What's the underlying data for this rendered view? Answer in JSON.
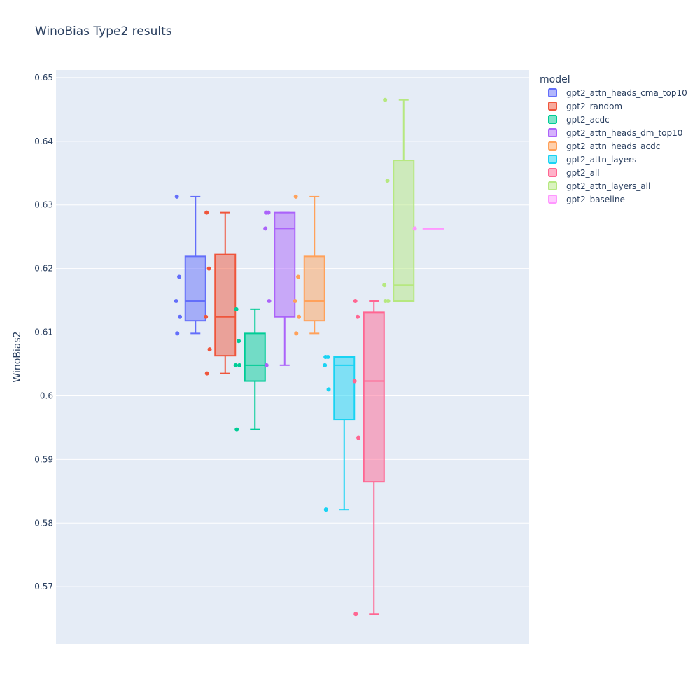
{
  "chart_data": {
    "type": "box",
    "title": "WinoBias Type2 results",
    "xlabel": "",
    "ylabel": "WinoBias2",
    "ylim": [
      0.561,
      0.6512
    ],
    "yticks": [
      0.57,
      0.58,
      0.59,
      0.6,
      0.61,
      0.62,
      0.63,
      0.64,
      0.65
    ],
    "ytick_labels": [
      "0.57",
      "0.58",
      "0.59",
      "0.6",
      "0.61",
      "0.62",
      "0.63",
      "0.64",
      "0.65"
    ],
    "grid": true,
    "legend_title": "model",
    "legend_position": "top-right",
    "series": [
      {
        "name": "gpt2_attn_heads_cma_top10",
        "color": "#636efa",
        "points": [
          0.6313,
          0.6187,
          0.6149,
          0.6124,
          0.6098
        ],
        "min": 0.6098,
        "q1": 0.6118,
        "median": 0.6149,
        "q3": 0.6219,
        "max": 0.6313
      },
      {
        "name": "gpt2_random",
        "color": "#ef553b",
        "points": [
          0.6288,
          0.62,
          0.6124,
          0.6073,
          0.6035
        ],
        "min": 0.6035,
        "q1": 0.6063,
        "median": 0.6124,
        "q3": 0.6222,
        "max": 0.6288
      },
      {
        "name": "gpt2_acdc",
        "color": "#00cc96",
        "points": [
          0.6136,
          0.6086,
          0.6048,
          0.6048,
          0.5947
        ],
        "min": 0.5947,
        "q1": 0.6023,
        "median": 0.6048,
        "q3": 0.6098,
        "max": 0.6136
      },
      {
        "name": "gpt2_attn_heads_dm_top10",
        "color": "#ab63fa",
        "points": [
          0.6288,
          0.6288,
          0.6263,
          0.6149,
          0.6048
        ],
        "min": 0.6048,
        "q1": 0.6124,
        "median": 0.6263,
        "q3": 0.6288,
        "max": 0.6288
      },
      {
        "name": "gpt2_attn_heads_acdc",
        "color": "#ffa15a",
        "points": [
          0.6313,
          0.6187,
          0.6149,
          0.6124,
          0.6098
        ],
        "min": 0.6098,
        "q1": 0.6118,
        "median": 0.6149,
        "q3": 0.6219,
        "max": 0.6313
      },
      {
        "name": "gpt2_attn_layers",
        "color": "#19d3f3",
        "points": [
          0.6061,
          0.6061,
          0.6048,
          0.601,
          0.5821
        ],
        "min": 0.5821,
        "q1": 0.5963,
        "median": 0.6048,
        "q3": 0.6061,
        "max": 0.6061
      },
      {
        "name": "gpt2_all",
        "color": "#ff6692",
        "points": [
          0.6149,
          0.6124,
          0.6023,
          0.5934,
          0.5657
        ],
        "min": 0.5657,
        "q1": 0.5865,
        "median": 0.6023,
        "q3": 0.6131,
        "max": 0.6149
      },
      {
        "name": "gpt2_attn_layers_all",
        "color": "#b6e880",
        "points": [
          0.6465,
          0.6338,
          0.6174,
          0.6149,
          0.6149
        ],
        "min": 0.6149,
        "q1": 0.6149,
        "median": 0.6174,
        "q3": 0.637,
        "max": 0.6465
      },
      {
        "name": "gpt2_baseline",
        "color": "#ff97ff",
        "points": [
          0.6263
        ],
        "min": 0.6263,
        "q1": 0.6263,
        "median": 0.6263,
        "q3": 0.6263,
        "max": 0.6263
      }
    ]
  }
}
